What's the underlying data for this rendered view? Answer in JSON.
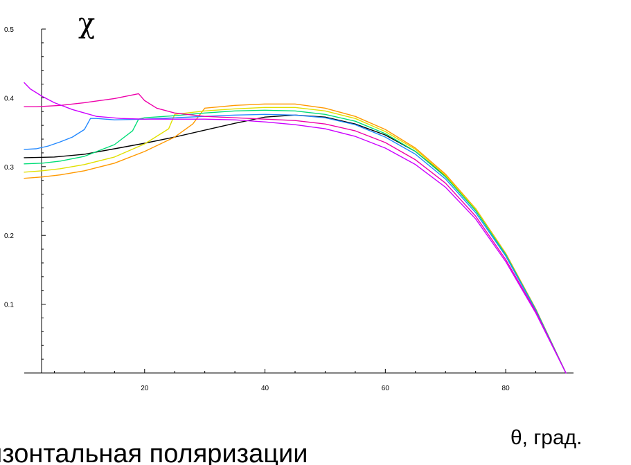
{
  "chart_data": {
    "type": "line",
    "title": "",
    "ylabel": "χ",
    "xlabel": "θ, град.",
    "caption": "изонтальная   поляризации",
    "xlim": [
      0,
      90
    ],
    "ylim": [
      0,
      0.5
    ],
    "xticks": [
      20,
      40,
      60,
      80
    ],
    "yticks": [
      0.1,
      0.2,
      0.3,
      0.4,
      0.5
    ],
    "grid": false,
    "series": [
      {
        "color": "#000000",
        "x": [
          0,
          5,
          10,
          15,
          20,
          25,
          30,
          35,
          40,
          45,
          50,
          55,
          60,
          65,
          70,
          75,
          80,
          85,
          90
        ],
        "y": [
          0.313,
          0.314,
          0.318,
          0.326,
          0.334,
          0.343,
          0.353,
          0.363,
          0.372,
          0.375,
          0.372,
          0.362,
          0.346,
          0.322,
          0.286,
          0.237,
          0.172,
          0.092,
          0.0
        ]
      },
      {
        "color": "#FF9900",
        "x": [
          0,
          3,
          6,
          10,
          15,
          20,
          25,
          28,
          30,
          35,
          40,
          45,
          50,
          55,
          60,
          65,
          70,
          75,
          80,
          85,
          90
        ],
        "y": [
          0.283,
          0.285,
          0.288,
          0.294,
          0.305,
          0.322,
          0.343,
          0.362,
          0.385,
          0.389,
          0.391,
          0.391,
          0.385,
          0.373,
          0.354,
          0.327,
          0.289,
          0.239,
          0.174,
          0.093,
          0.0
        ]
      },
      {
        "color": "#E0E000",
        "x": [
          0,
          3,
          6,
          10,
          15,
          20,
          24,
          25,
          30,
          35,
          40,
          45,
          50,
          55,
          60,
          65,
          70,
          75,
          80,
          85,
          90
        ],
        "y": [
          0.292,
          0.294,
          0.297,
          0.303,
          0.314,
          0.333,
          0.355,
          0.376,
          0.381,
          0.384,
          0.386,
          0.386,
          0.381,
          0.37,
          0.351,
          0.325,
          0.287,
          0.238,
          0.173,
          0.092,
          0.0
        ]
      },
      {
        "color": "#00DD77",
        "x": [
          0,
          3,
          6,
          10,
          15,
          18,
          19,
          20,
          25,
          30,
          35,
          40,
          45,
          50,
          55,
          60,
          65,
          70,
          75,
          80,
          85,
          90
        ],
        "y": [
          0.304,
          0.305,
          0.308,
          0.315,
          0.332,
          0.352,
          0.369,
          0.371,
          0.374,
          0.378,
          0.381,
          0.382,
          0.381,
          0.376,
          0.366,
          0.348,
          0.322,
          0.285,
          0.236,
          0.172,
          0.092,
          0.0
        ]
      },
      {
        "color": "#2288FF",
        "x": [
          0,
          2,
          4,
          6,
          8,
          10,
          11,
          12,
          15,
          20,
          25,
          30,
          35,
          40,
          45,
          50,
          55,
          60,
          65,
          70,
          75,
          80,
          85,
          90
        ],
        "y": [
          0.325,
          0.326,
          0.33,
          0.336,
          0.343,
          0.354,
          0.37,
          0.37,
          0.368,
          0.369,
          0.371,
          0.373,
          0.375,
          0.376,
          0.375,
          0.371,
          0.361,
          0.343,
          0.318,
          0.282,
          0.233,
          0.17,
          0.091,
          0.0
        ]
      },
      {
        "color": "#EE00AA",
        "x": [
          0,
          2,
          4,
          6,
          10,
          15,
          19,
          20,
          22,
          25,
          30,
          35,
          40,
          45,
          50,
          55,
          60,
          65,
          70,
          75,
          80,
          85,
          90
        ],
        "y": [
          0.387,
          0.387,
          0.388,
          0.389,
          0.393,
          0.399,
          0.406,
          0.396,
          0.385,
          0.378,
          0.373,
          0.371,
          0.369,
          0.367,
          0.362,
          0.352,
          0.335,
          0.31,
          0.276,
          0.228,
          0.165,
          0.089,
          0.0
        ]
      },
      {
        "color": "#CC00FF",
        "x": [
          0,
          1,
          3,
          5,
          8,
          12,
          16,
          20,
          25,
          30,
          35,
          40,
          45,
          50,
          55,
          60,
          65,
          70,
          75,
          80,
          85,
          90
        ],
        "y": [
          0.422,
          0.413,
          0.402,
          0.393,
          0.383,
          0.373,
          0.37,
          0.369,
          0.369,
          0.369,
          0.368,
          0.365,
          0.361,
          0.355,
          0.344,
          0.327,
          0.303,
          0.27,
          0.224,
          0.162,
          0.087,
          0.0
        ]
      }
    ]
  }
}
